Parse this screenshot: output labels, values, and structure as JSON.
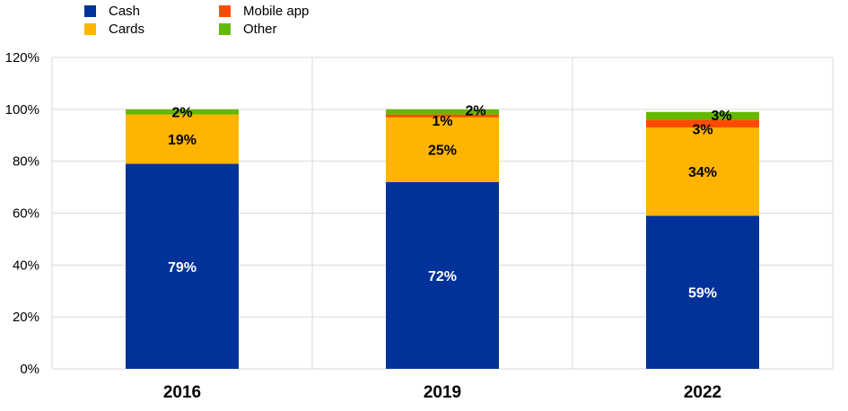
{
  "chart_data": {
    "type": "bar",
    "stacked": true,
    "title": "",
    "xlabel": "",
    "ylabel": "",
    "categories": [
      "2016",
      "2019",
      "2022"
    ],
    "series": [
      {
        "name": "Cash",
        "color": "#003299",
        "values": [
          79,
          72,
          59
        ],
        "label_color": "#ffffff"
      },
      {
        "name": "Cards",
        "color": "#FFB400",
        "values": [
          19,
          25,
          34
        ],
        "label_color": "#000000"
      },
      {
        "name": "Mobile app",
        "color": "#FF4B00",
        "values": [
          0,
          1,
          3
        ],
        "label_color": "#000000"
      },
      {
        "name": "Other",
        "color": "#65B800",
        "values": [
          2,
          2,
          3
        ],
        "label_color": "#000000"
      }
    ],
    "data_labels": [
      [
        "79%",
        "72%",
        "59%"
      ],
      [
        "19%",
        "25%",
        "34%"
      ],
      [
        "",
        "1%",
        "3%"
      ],
      [
        "2%",
        "2%",
        "3%"
      ]
    ],
    "ylim": [
      0,
      120
    ],
    "yticks": [
      0,
      20,
      40,
      60,
      80,
      100,
      120
    ],
    "ytick_labels": [
      "0%",
      "20%",
      "40%",
      "60%",
      "80%",
      "100%",
      "120%"
    ],
    "grid": true,
    "legend_position": "top-left"
  }
}
